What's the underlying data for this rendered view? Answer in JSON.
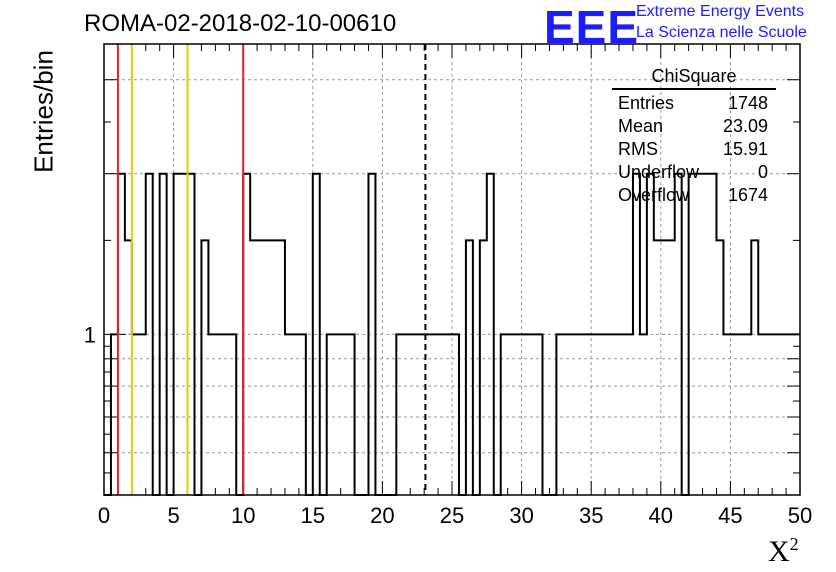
{
  "title": "ROMA-02-2018-02-10-00610",
  "logo": {
    "mark": "EEE",
    "line1": "Extreme Energy Events",
    "line2": "La Scienza nelle Scuole",
    "color": "#1c1cff"
  },
  "stats": {
    "title": "ChiSquare",
    "rows": [
      {
        "label": "Entries",
        "value": "1748"
      },
      {
        "label": "Mean",
        "value": "23.09"
      },
      {
        "label": "RMS",
        "value": "15.91"
      },
      {
        "label": "Underflow",
        "value": "0"
      },
      {
        "label": "Overflow",
        "value": "1674"
      }
    ]
  },
  "chart_data": {
    "type": "histogram",
    "xlabel": "X",
    "xlabel_sup": "2",
    "ylabel": "Entries/bin",
    "xlim": [
      0,
      50
    ],
    "ylog": true,
    "ylim": [
      0.5,
      3.5
    ],
    "grid": true,
    "bin_width": 0.5,
    "x_ticks": [
      0,
      5,
      10,
      15,
      20,
      25,
      30,
      35,
      40,
      45,
      50
    ],
    "y_tick_labels": [
      "1"
    ],
    "bins": [
      [
        0.5,
        1
      ],
      [
        1.0,
        2
      ],
      [
        1.5,
        1.5
      ],
      [
        2.0,
        1
      ],
      [
        2.5,
        1
      ],
      [
        3.0,
        2
      ],
      [
        3.5,
        0
      ],
      [
        4.0,
        2
      ],
      [
        4.5,
        0
      ],
      [
        5.0,
        2
      ],
      [
        6.5,
        0
      ],
      [
        7.0,
        1.5
      ],
      [
        7.5,
        1
      ],
      [
        9.0,
        1
      ],
      [
        9.5,
        0
      ],
      [
        10.0,
        2
      ],
      [
        10.5,
        1.5
      ],
      [
        13.0,
        1
      ],
      [
        14.5,
        0
      ],
      [
        15.0,
        2
      ],
      [
        15.5,
        0
      ],
      [
        16.0,
        1
      ],
      [
        18.0,
        0
      ],
      [
        19.0,
        2
      ],
      [
        19.5,
        0
      ],
      [
        21.0,
        1
      ],
      [
        24.5,
        1
      ],
      [
        25.5,
        0
      ],
      [
        26.0,
        1.5
      ],
      [
        26.5,
        0
      ],
      [
        27.0,
        1.5
      ],
      [
        27.5,
        2
      ],
      [
        28.0,
        0
      ],
      [
        28.5,
        1
      ],
      [
        30.0,
        1
      ],
      [
        31.5,
        0
      ],
      [
        32.5,
        1
      ],
      [
        38.0,
        2
      ],
      [
        38.5,
        1
      ],
      [
        39.0,
        2
      ],
      [
        39.5,
        1.5
      ],
      [
        41.0,
        2
      ],
      [
        41.5,
        0
      ],
      [
        42.0,
        2
      ],
      [
        44.0,
        1.5
      ],
      [
        44.5,
        1
      ],
      [
        46.5,
        1.5
      ],
      [
        47.0,
        1
      ]
    ],
    "vlines": [
      {
        "x": 1,
        "color": "#e8202a",
        "style": "solid"
      },
      {
        "x": 2,
        "color": "#f5c400",
        "style": "solid"
      },
      {
        "x": 6,
        "color": "#f5c400",
        "style": "solid"
      },
      {
        "x": 10,
        "color": "#e8202a",
        "style": "solid"
      },
      {
        "x": 23.09,
        "color": "#000000",
        "style": "dashed"
      }
    ]
  }
}
